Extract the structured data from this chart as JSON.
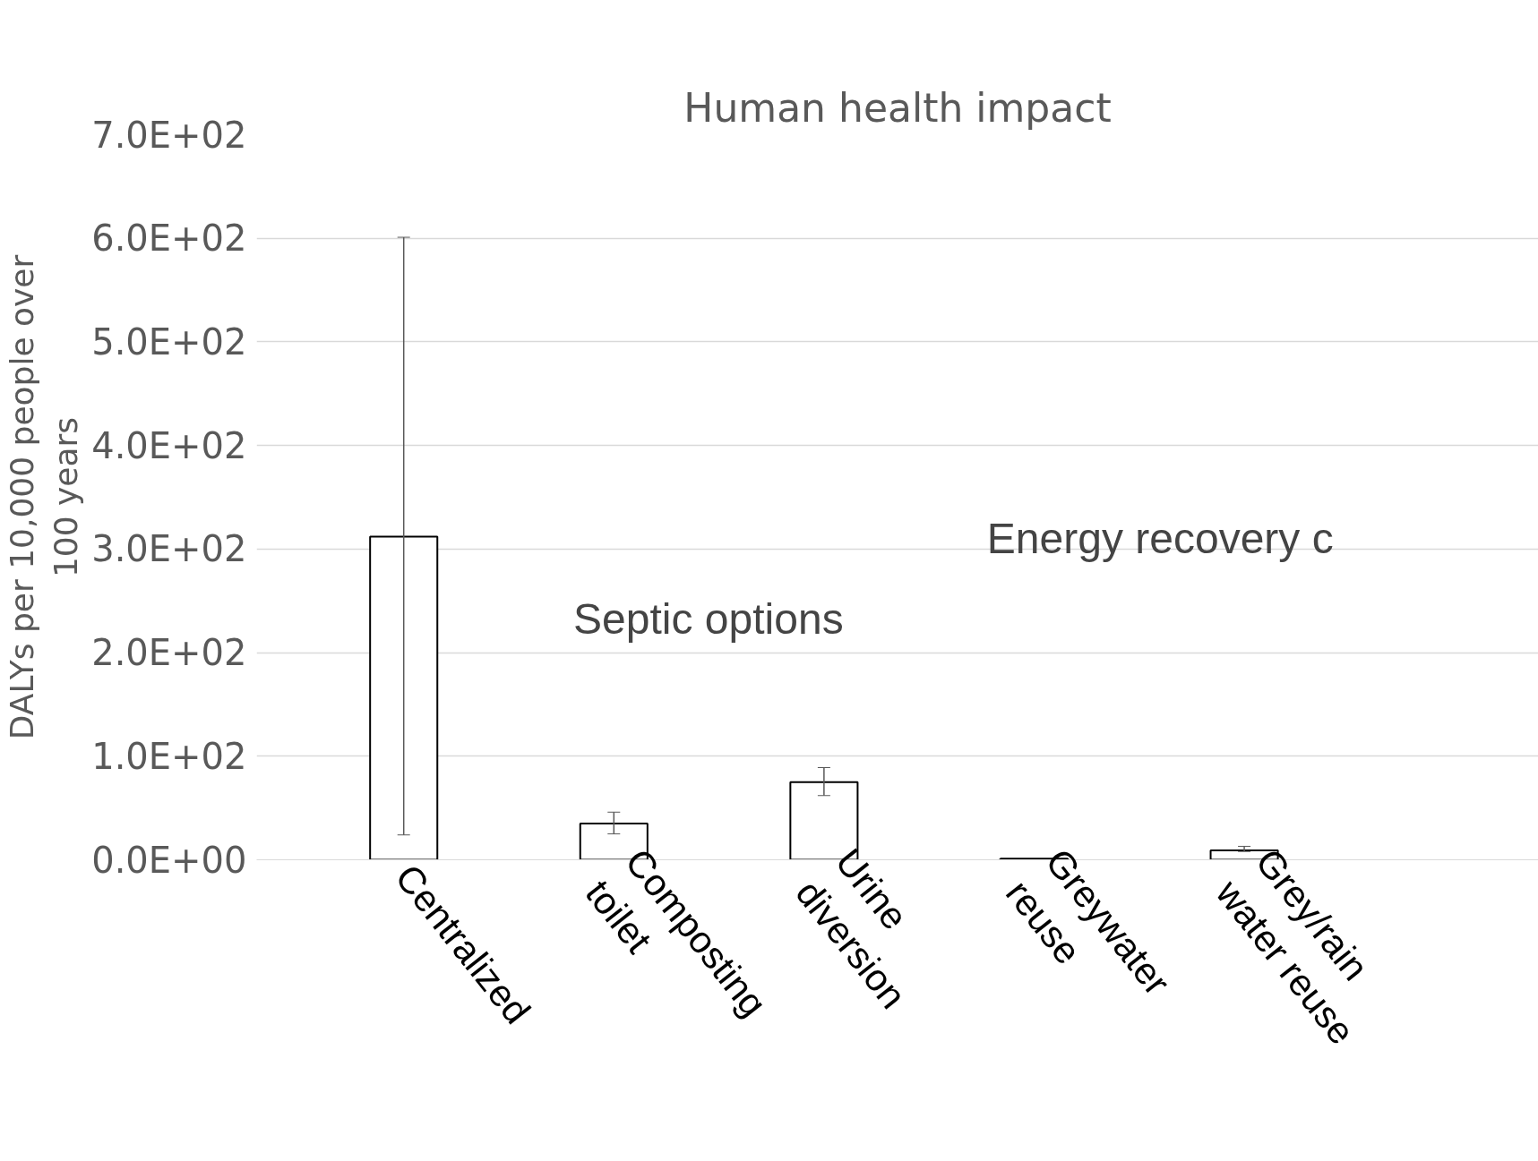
{
  "chart_data": {
    "type": "bar",
    "title": "Human health impact",
    "ylabel": "DALYs per 10,000 people over 100 years",
    "categories": [
      "Centralized",
      "Composting toilet",
      "Urine diversion",
      "Greywater reuse",
      "Grey/rain water reuse"
    ],
    "values": [
      312,
      35,
      75,
      1,
      9
    ],
    "errors": [
      [
        24,
        601
      ],
      [
        25,
        46
      ],
      [
        62,
        89
      ],
      null,
      [
        8,
        13
      ]
    ],
    "color": "#ffffff",
    "ylim": [
      0,
      700
    ],
    "yticks": [
      {
        "value": 0,
        "label": "0.0E+00"
      },
      {
        "value": 100,
        "label": "1.0E+02"
      },
      {
        "value": 200,
        "label": "2.0E+02"
      },
      {
        "value": 300,
        "label": "3.0E+02"
      },
      {
        "value": 400,
        "label": "4.0E+02"
      },
      {
        "value": 500,
        "label": "5.0E+02"
      },
      {
        "value": 600,
        "label": "6.0E+02"
      },
      {
        "value": 700,
        "label": "7.0E+02"
      }
    ],
    "grid": "y",
    "annotations": [
      "Septic options",
      "Energy recovery c"
    ]
  }
}
